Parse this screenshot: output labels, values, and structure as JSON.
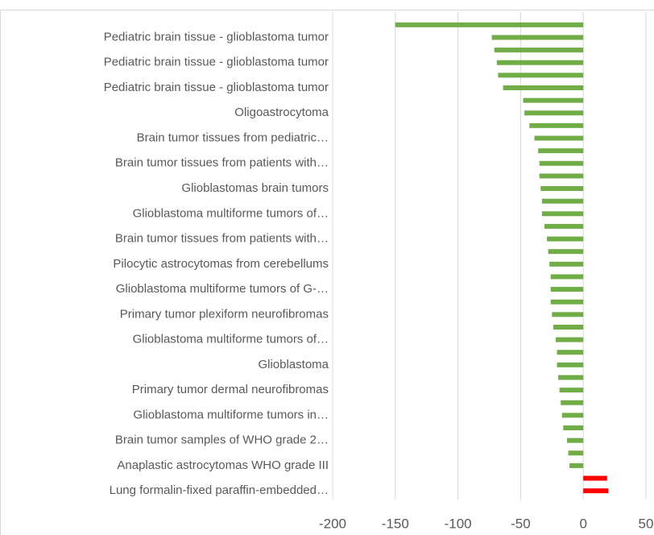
{
  "chart_data": {
    "type": "barh",
    "categories": [
      null,
      "Pediatric brain tissue - glioblastoma tumor",
      null,
      "Pediatric brain tissue - glioblastoma tumor",
      null,
      "Pediatric brain tissue - glioblastoma tumor",
      null,
      "Oligoastrocytoma",
      null,
      "Brain tumor tissues from pediatric…",
      null,
      "Brain tumor tissues from patients with…",
      null,
      "Glioblastomas brain tumors",
      null,
      "Glioblastoma multiforme tumors of…",
      null,
      "Brain tumor tissues from patients with…",
      null,
      "Pilocytic astrocytomas from cerebellums",
      null,
      "Glioblastoma multiforme tumors of G-…",
      null,
      "Primary tumor plexiform neurofibromas",
      null,
      "Glioblastoma multiforme tumors of…",
      null,
      "Glioblastoma",
      null,
      "Primary tumor dermal neurofibromas",
      null,
      "Glioblastoma multiforme tumors in…",
      null,
      "Brain tumor samples of WHO grade 2…",
      null,
      "Anaplastic astrocytomas WHO grade III",
      null,
      "Lung formalin-fixed paraffin-embedded…"
    ],
    "values": [
      -150,
      -73,
      -71,
      -69,
      -68,
      -64,
      -48,
      -47,
      -43,
      -39,
      -36,
      -35,
      -35,
      -34,
      -33,
      -33,
      -31,
      -29,
      -28,
      -27,
      -26,
      -26,
      -26,
      -25,
      -24,
      -22,
      -21,
      -21,
      -20,
      -19,
      -18,
      -17,
      -16,
      -13,
      -12,
      -11,
      19,
      20
    ],
    "colors": [
      "#70ad47",
      "#70ad47",
      "#70ad47",
      "#70ad47",
      "#70ad47",
      "#70ad47",
      "#70ad47",
      "#70ad47",
      "#70ad47",
      "#70ad47",
      "#70ad47",
      "#70ad47",
      "#70ad47",
      "#70ad47",
      "#70ad47",
      "#70ad47",
      "#70ad47",
      "#70ad47",
      "#70ad47",
      "#70ad47",
      "#70ad47",
      "#70ad47",
      "#70ad47",
      "#70ad47",
      "#70ad47",
      "#70ad47",
      "#70ad47",
      "#70ad47",
      "#70ad47",
      "#70ad47",
      "#70ad47",
      "#70ad47",
      "#70ad47",
      "#70ad47",
      "#70ad47",
      "#70ad47",
      "#ff0000",
      "#ff0000"
    ],
    "xlim": [
      -200,
      50
    ],
    "xticks": [
      -200,
      -150,
      -100,
      -50,
      0,
      50
    ],
    "grid": true
  }
}
